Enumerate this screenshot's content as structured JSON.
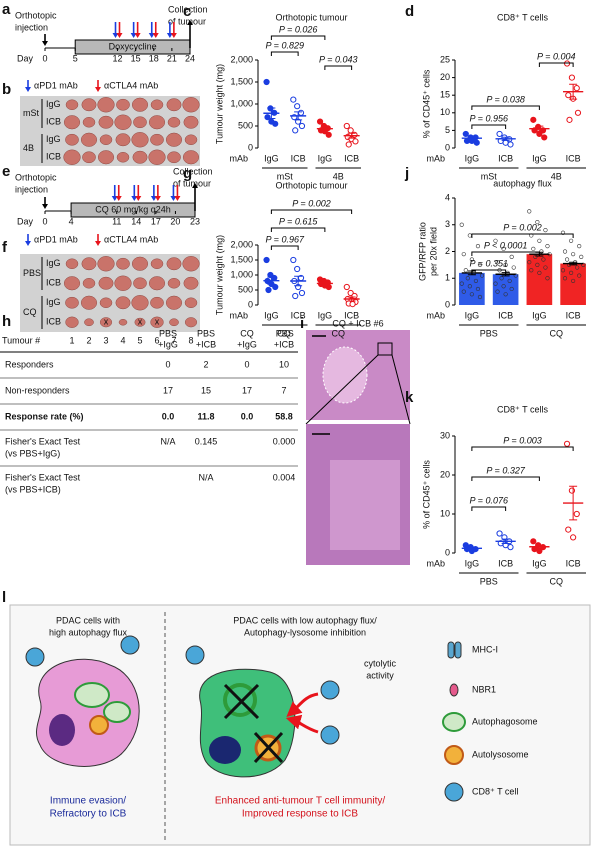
{
  "figure": {
    "a": {
      "label": "a",
      "injection": [
        "Orthotopic",
        "injection"
      ],
      "collection": [
        "Collection",
        "of tumour"
      ],
      "day_prefix": "Day",
      "days": [
        0,
        5,
        12,
        15,
        18,
        21,
        24
      ],
      "treatment": "Doxycycline",
      "legend": [
        "αPD1 mAb",
        "αCTLA4 mAb"
      ]
    },
    "b": {
      "label": "b",
      "groups": [
        {
          "name": "mSt",
          "rows": [
            "IgG",
            "ICB"
          ]
        },
        {
          "name": "4B",
          "rows": [
            "IgG",
            "ICB"
          ]
        }
      ]
    },
    "e": {
      "label": "e",
      "injection": [
        "Orthotopic",
        "injection"
      ],
      "collection": [
        "Collection",
        "of tumour"
      ],
      "day_prefix": "Day",
      "days": [
        0,
        4,
        11,
        14,
        17,
        20,
        23
      ],
      "treatment": "CQ 60 mg/kg q24h",
      "legend": [
        "αPD1 mAb",
        "αCTLA4 mAb"
      ]
    },
    "f": {
      "label": "f",
      "groups": [
        {
          "name": "PBS",
          "rows": [
            "IgG",
            "ICB"
          ]
        },
        {
          "name": "CQ",
          "rows": [
            "IgG",
            "ICB"
          ]
        }
      ],
      "x_label": "Tumour #",
      "tumours": [
        1,
        2,
        3,
        4,
        5,
        6,
        7,
        8
      ],
      "excluded": {
        "mark": "x",
        "tumours": [
          3,
          5,
          6
        ]
      }
    },
    "h": {
      "label": "h",
      "columns": [
        [
          "PBS",
          "+IgG"
        ],
        [
          "PBS",
          "+ICB"
        ],
        [
          "CQ",
          "+IgG"
        ],
        [
          "CQ",
          "+ICB"
        ]
      ],
      "rows": [
        {
          "label": [
            "Responders"
          ],
          "cells": [
            "0",
            "2",
            "0",
            "10"
          ],
          "bold": false
        },
        {
          "label": [
            "Non-responders"
          ],
          "cells": [
            "17",
            "15",
            "17",
            "7"
          ],
          "bold": false
        },
        {
          "label": [
            "Response rate (%)"
          ],
          "cells": [
            "0.0",
            "11.8",
            "0.0",
            "58.8"
          ],
          "bold": true
        },
        {
          "label": [
            "Fisher's Exact Test",
            "(vs PBS+IgG)"
          ],
          "cells": [
            "N/A",
            "0.145",
            null,
            "0.000"
          ],
          "bold": false
        },
        {
          "label": [
            "Fisher's Exact Test",
            "(vs PBS+ICB)"
          ],
          "cells": [
            null,
            "N/A",
            null,
            "0.004"
          ],
          "bold": false
        }
      ]
    },
    "i": {
      "label": "i",
      "title": "CQ + ICB #6"
    },
    "l": {
      "label": "l",
      "left_title": [
        "PDAC cells with",
        "high autophagy flux"
      ],
      "left_caption": [
        "Immune evasion/",
        "Refractory to ICB"
      ],
      "right_title": [
        "PDAC cells with low autophagy flux/",
        "Autophagy-lysosome inhibition"
      ],
      "activity": [
        "cytolytic",
        "activity"
      ],
      "right_caption": [
        "Enhanced anti-tumour T cell immunity/",
        "Improved response to ICB"
      ],
      "legend": [
        "MHC-I",
        "NBR1",
        "Autophagosome",
        "Autolysosome",
        "CD8⁺ T cell"
      ]
    }
  },
  "chart_data": [
    {
      "label": "c",
      "type": "dot",
      "title": "Orthotopic tumour",
      "y_label": [
        "Tumour weight (mg)"
      ],
      "x_label": "mAb",
      "ylim": [
        0,
        2000
      ],
      "yticks": [
        0,
        500,
        {
          "value": 1000,
          "label": "1,000"
        },
        {
          "value": 1500,
          "label": "1,500"
        },
        {
          "value": 2000,
          "label": "2,000"
        }
      ],
      "groups": [
        {
          "name": "mSt",
          "categories": [
            "IgG",
            "ICB"
          ],
          "series": [
            {
              "color": "#1a3de0",
              "filled": true,
              "values": [
                1500,
                900,
                800,
                700,
                600,
                550
              ],
              "mean": 790,
              "sem": 120
            },
            {
              "color": "#1a3de0",
              "filled": false,
              "values": [
                1100,
                950,
                800,
                700,
                600,
                500,
                400
              ],
              "mean": 730,
              "sem": 90
            }
          ]
        },
        {
          "name": "4B",
          "categories": [
            "IgG",
            "ICB"
          ],
          "series": [
            {
              "color": "#e8141c",
              "filled": true,
              "values": [
                600,
                500,
                450,
                400,
                380,
                300
              ],
              "mean": 440,
              "sem": 45
            },
            {
              "color": "#e8141c",
              "filled": false,
              "values": [
                500,
                400,
                300,
                250,
                200,
                150,
                80
              ],
              "mean": 280,
              "sem": 55
            }
          ]
        }
      ],
      "comparisons": [
        {
          "label": "P = 0.026",
          "pair": [
            0,
            2
          ]
        },
        {
          "label": "P = 0.829",
          "pair": [
            0,
            1
          ]
        },
        {
          "label": "P = 0.043",
          "pair": [
            2,
            3
          ]
        }
      ]
    },
    {
      "label": "d",
      "type": "dot",
      "title": "CD8⁺ T cells",
      "y_label": [
        "% of CD45⁺ cells"
      ],
      "x_label": "mAb",
      "ylim": [
        0,
        25
      ],
      "yticks": [
        0,
        5,
        10,
        15,
        20,
        25
      ],
      "groups": [
        {
          "name": "mSt",
          "categories": [
            "IgG",
            "ICB"
          ],
          "series": [
            {
              "color": "#1a3de0",
              "filled": true,
              "values": [
                4,
                3,
                3,
                2,
                2,
                1.5
              ],
              "mean": 2.8,
              "sem": 0.4
            },
            {
              "color": "#1a3de0",
              "filled": false,
              "values": [
                4,
                3,
                2.5,
                2,
                1.5,
                1
              ],
              "mean": 2.6,
              "sem": 0.45
            }
          ]
        },
        {
          "name": "4B",
          "categories": [
            "IgG",
            "ICB"
          ],
          "series": [
            {
              "color": "#e8141c",
              "filled": true,
              "values": [
                8,
                6,
                5,
                5,
                4,
                3
              ],
              "mean": 5.5,
              "sem": 0.7
            },
            {
              "color": "#e8141c",
              "filled": false,
              "values": [
                24,
                20,
                17,
                15,
                14,
                10,
                8
              ],
              "mean": 16,
              "sem": 2.1
            }
          ]
        }
      ],
      "comparisons": [
        {
          "label": "P = 0.004",
          "pair": [
            2,
            3
          ]
        },
        {
          "label": "P = 0.038",
          "pair": [
            0,
            2
          ]
        },
        {
          "label": "P = 0.956",
          "pair": [
            0,
            1
          ]
        }
      ]
    },
    {
      "label": "g",
      "type": "dot",
      "title": "Orthotopic tumour",
      "y_label": [
        "Tumour weight (mg)"
      ],
      "x_label": "mAb",
      "ylim": [
        0,
        2000
      ],
      "yticks": [
        0,
        500,
        {
          "value": 1000,
          "label": "1,000"
        },
        {
          "value": 1500,
          "label": "1,500"
        },
        {
          "value": 2000,
          "label": "2,000"
        }
      ],
      "groups": [
        {
          "name": "PBS",
          "categories": [
            "IgG",
            "ICB"
          ],
          "series": [
            {
              "color": "#1a3de0",
              "filled": true,
              "values": [
                1500,
                1000,
                900,
                800,
                700,
                600,
                500
              ],
              "mean": 810,
              "sem": 120
            },
            {
              "color": "#1a3de0",
              "filled": false,
              "values": [
                1500,
                1200,
                900,
                800,
                600,
                400,
                300
              ],
              "mean": 800,
              "sem": 160
            }
          ]
        },
        {
          "name": "CQ",
          "categories": [
            "IgG",
            "ICB"
          ],
          "series": [
            {
              "color": "#e8141c",
              "filled": true,
              "values": [
                850,
                800,
                750,
                700,
                650,
                600
              ],
              "mean": 720,
              "sem": 40
            },
            {
              "color": "#e8141c",
              "filled": false,
              "values": [
                600,
                400,
                300,
                200,
                150,
                100,
                50,
                30
              ],
              "mean": 200,
              "sem": 65
            }
          ]
        }
      ],
      "comparisons": [
        {
          "label": "P = 0.002",
          "pair": [
            0,
            3
          ]
        },
        {
          "label": "P = 0.615",
          "pair": [
            0,
            2
          ]
        },
        {
          "label": "P = 0.967",
          "pair": [
            0,
            1
          ]
        }
      ]
    },
    {
      "label": "j",
      "type": "bar",
      "title": "autophagy flux",
      "y_label": [
        "GFP/RFP ratio",
        "per 20x field"
      ],
      "x_label": "mAb",
      "ylim": [
        0,
        4
      ],
      "yticks": [
        0,
        1,
        2,
        3,
        4
      ],
      "groups": [
        {
          "name": "PBS",
          "categories": [
            "IgG",
            "ICB"
          ],
          "series": [
            {
              "color": "#2f5be8",
              "filled": true,
              "values": [
                3.0,
                2.6,
                2.2,
                1.9,
                1.7,
                1.5,
                1.3,
                1.2,
                1.1,
                1.0,
                0.9,
                0.8,
                0.7,
                0.6,
                0.5,
                0.4,
                0.3
              ],
              "mean": 1.2,
              "sem": 0.07
            },
            {
              "color": "#2f5be8",
              "filled": true,
              "values": [
                2.4,
                2.1,
                1.8,
                1.6,
                1.5,
                1.4,
                1.3,
                1.2,
                1.1,
                1.0,
                0.9,
                0.8,
                0.7,
                0.6,
                0.5,
                0.4
              ],
              "mean": 1.15,
              "sem": 0.06
            }
          ]
        },
        {
          "name": "CQ",
          "categories": [
            "IgG",
            "ICB"
          ],
          "series": [
            {
              "color": "#f02424",
              "filled": true,
              "values": [
                3.5,
                3.1,
                2.8,
                2.6,
                2.4,
                2.2,
                2.1,
                2.0,
                1.9,
                1.8,
                1.7,
                1.6,
                1.5,
                1.4,
                1.3,
                1.2,
                1.0
              ],
              "mean": 1.9,
              "sem": 0.07
            },
            {
              "color": "#f02424",
              "filled": true,
              "values": [
                2.7,
                2.4,
                2.2,
                2.0,
                1.9,
                1.8,
                1.7,
                1.6,
                1.5,
                1.5,
                1.4,
                1.3,
                1.2,
                1.1,
                1.0,
                0.9
              ],
              "mean": 1.55,
              "sem": 0.05
            }
          ]
        }
      ],
      "comparisons": [
        {
          "label": "P = 0.002",
          "pair": [
            0,
            3
          ]
        },
        {
          "label": "P < 0.0001",
          "pair": [
            0,
            2
          ]
        },
        {
          "label": "P = 0.351",
          "pair": [
            0,
            1
          ]
        }
      ]
    },
    {
      "label": "k",
      "type": "dot",
      "title": "CD8⁺ T cells",
      "y_label": [
        "% of CD45⁺ cells"
      ],
      "x_label": "mAb",
      "ylim": [
        0,
        30
      ],
      "yticks": [
        0,
        10,
        20,
        30
      ],
      "groups": [
        {
          "name": "PBS",
          "categories": [
            "IgG",
            "ICB"
          ],
          "series": [
            {
              "color": "#1a3de0",
              "filled": true,
              "values": [
                2,
                1.5,
                1,
                1,
                0.5
              ],
              "mean": 1.2,
              "sem": 0.3
            },
            {
              "color": "#1a3de0",
              "filled": false,
              "values": [
                5,
                4,
                3,
                2.5,
                2,
                1.5
              ],
              "mean": 3,
              "sem": 0.55
            }
          ]
        },
        {
          "name": "CQ",
          "categories": [
            "IgG",
            "ICB"
          ],
          "series": [
            {
              "color": "#e8141c",
              "filled": true,
              "values": [
                3,
                2,
                1.5,
                1,
                0.5
              ],
              "mean": 1.6,
              "sem": 0.45
            },
            {
              "color": "#e8141c",
              "filled": false,
              "values": [
                28,
                16,
                10,
                6,
                4
              ],
              "mean": 12.8,
              "sem": 4.3
            }
          ]
        }
      ],
      "comparisons": [
        {
          "label": "P = 0.003",
          "pair": [
            0,
            3
          ]
        },
        {
          "label": "P = 0.327",
          "pair": [
            0,
            2
          ]
        },
        {
          "label": "P = 0.076",
          "pair": [
            0,
            1
          ]
        }
      ]
    }
  ]
}
